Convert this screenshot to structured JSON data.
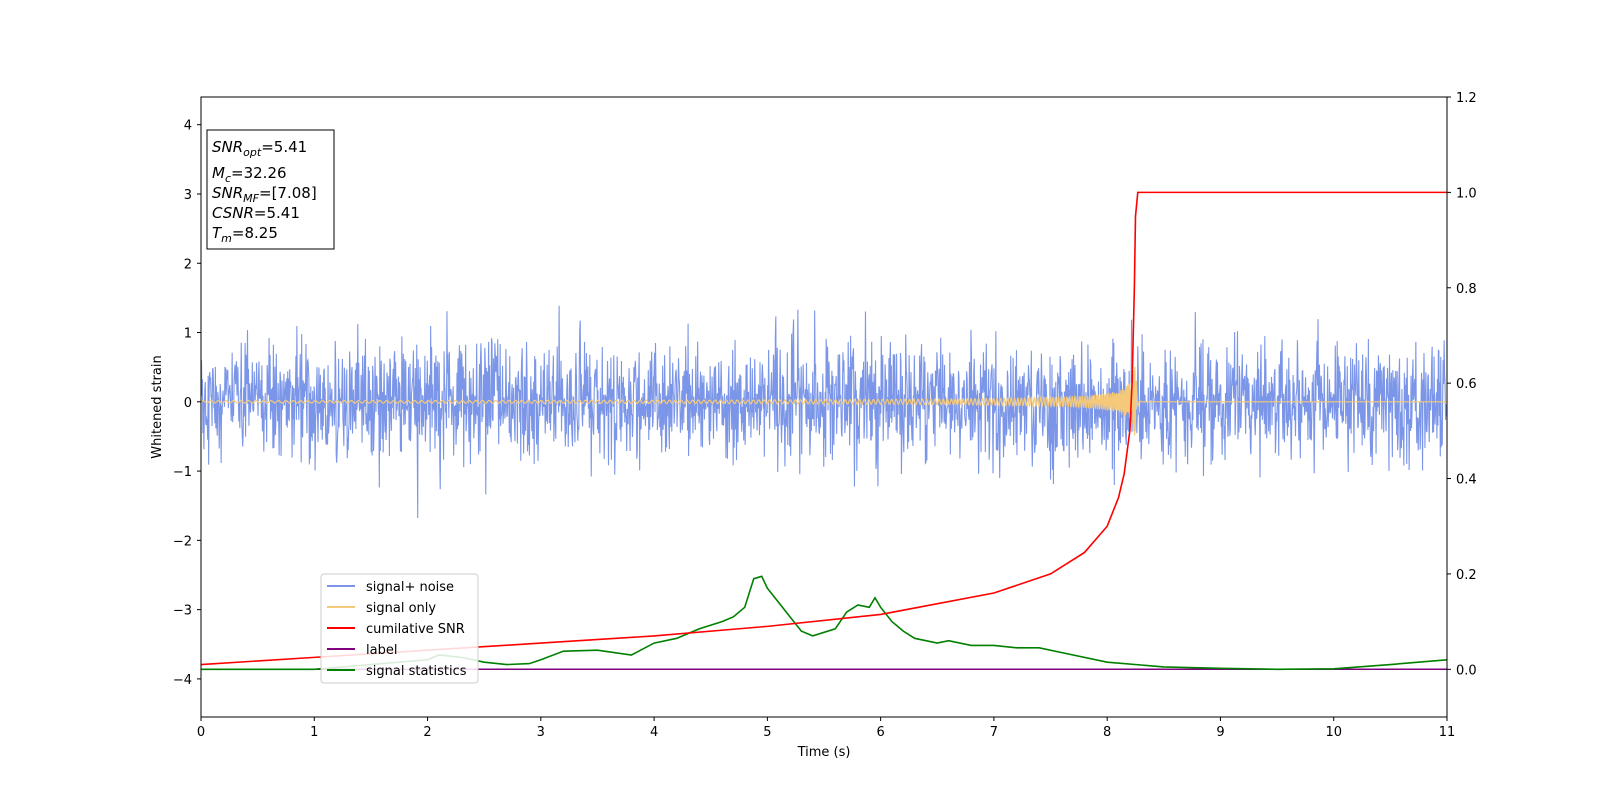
{
  "chart_data": {
    "type": "line",
    "xlabel": "Time (s)",
    "ylabel": "Whitened strain",
    "xlim": [
      0,
      11
    ],
    "ylim_left": [
      -4.55,
      4.4
    ],
    "ylim_right": [
      -0.1,
      1.2
    ],
    "xticks": [
      0,
      1,
      2,
      3,
      4,
      5,
      6,
      7,
      8,
      9,
      10,
      11
    ],
    "yticks_left": [
      -4,
      -3,
      -2,
      -1,
      0,
      1,
      2,
      3,
      4
    ],
    "yticks_right": [
      0.0,
      0.2,
      0.4,
      0.6,
      0.8,
      1.0,
      1.2
    ],
    "grid": false,
    "legend_position": "lower-left",
    "info_box": {
      "snr_opt": {
        "main": "SNR",
        "sub": "opt",
        "value": "=5.41"
      },
      "mc": {
        "main": "M",
        "sub": "c",
        "value": "=32.26"
      },
      "snr_mf": {
        "main": "SNR",
        "sub": "MF",
        "value": "=[7.08]"
      },
      "csnr": {
        "main": "CSNR",
        "value": "=5.41"
      },
      "tm": {
        "main": "T",
        "sub": "m",
        "value": "=8.25"
      }
    },
    "series": [
      {
        "name": "signal+ noise",
        "color": "#7b96e8",
        "axis": "left",
        "description_values": {
          "noise_sigma": 0.42,
          "max_abs": 1.8
        }
      },
      {
        "name": "signal only",
        "color": "#f5c97a",
        "axis": "left",
        "chirp": {
          "merger_time": 8.25,
          "peak_amplitude": 0.6
        }
      },
      {
        "name": "cumilative SNR",
        "color": "#ff0000",
        "axis": "right",
        "x": [
          0,
          1,
          2,
          3,
          4,
          5,
          6,
          7,
          7.5,
          7.8,
          8.0,
          8.1,
          8.15,
          8.2,
          8.22,
          8.24,
          8.25,
          8.27,
          9,
          10,
          11
        ],
        "values": [
          0.01,
          0.025,
          0.04,
          0.055,
          0.07,
          0.09,
          0.115,
          0.16,
          0.2,
          0.245,
          0.3,
          0.36,
          0.41,
          0.5,
          0.6,
          0.8,
          0.95,
          1.0,
          1.0,
          1.0,
          1.0
        ]
      },
      {
        "name": "label",
        "color": "#800080",
        "axis": "right",
        "x": [
          0,
          11
        ],
        "values": [
          0,
          0
        ]
      },
      {
        "name": "signal statistics",
        "color": "#008000",
        "axis": "right",
        "x": [
          0,
          0.5,
          1,
          1.5,
          2,
          2.1,
          2.3,
          2.5,
          2.7,
          2.9,
          3.0,
          3.2,
          3.5,
          3.8,
          4.0,
          4.2,
          4.4,
          4.6,
          4.7,
          4.8,
          4.88,
          4.95,
          5.0,
          5.1,
          5.2,
          5.3,
          5.4,
          5.6,
          5.7,
          5.8,
          5.9,
          5.95,
          6.0,
          6.1,
          6.2,
          6.3,
          6.5,
          6.6,
          6.8,
          7.0,
          7.2,
          7.4,
          7.6,
          8.0,
          8.5,
          9,
          9.5,
          10,
          10.5,
          11
        ],
        "values": [
          0.0,
          0.0,
          0.0,
          0.01,
          0.02,
          0.03,
          0.025,
          0.015,
          0.01,
          0.012,
          0.02,
          0.038,
          0.04,
          0.03,
          0.055,
          0.065,
          0.085,
          0.1,
          0.11,
          0.13,
          0.19,
          0.195,
          0.17,
          0.14,
          0.11,
          0.08,
          0.07,
          0.085,
          0.12,
          0.135,
          0.13,
          0.15,
          0.13,
          0.1,
          0.08,
          0.065,
          0.055,
          0.06,
          0.05,
          0.05,
          0.045,
          0.045,
          0.035,
          0.015,
          0.005,
          0.002,
          0.0,
          0.001,
          0.01,
          0.02
        ]
      }
    ]
  }
}
